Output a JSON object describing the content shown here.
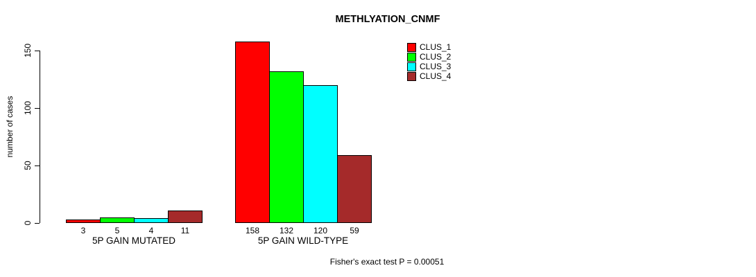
{
  "chart_data": {
    "type": "bar",
    "title": "METHLYATION_CNMF",
    "ylabel": "number of cases",
    "xlabel": "",
    "ylim": [
      0,
      150
    ],
    "yticks": [
      0,
      50,
      100,
      150
    ],
    "categories": [
      "5P GAIN MUTATED",
      "5P GAIN WILD-TYPE"
    ],
    "series": [
      {
        "name": "CLUS_1",
        "color": "#FF0000",
        "values": [
          3,
          158
        ]
      },
      {
        "name": "CLUS_2",
        "color": "#00FF00",
        "values": [
          5,
          132
        ]
      },
      {
        "name": "CLUS_3",
        "color": "#00FFFF",
        "values": [
          4,
          120
        ]
      },
      {
        "name": "CLUS_4",
        "color": "#A52A2A",
        "values": [
          11,
          59
        ]
      }
    ],
    "legend_position": "top-right",
    "grid": false,
    "annotation": "Fisher's exact test P = 0.00051"
  }
}
